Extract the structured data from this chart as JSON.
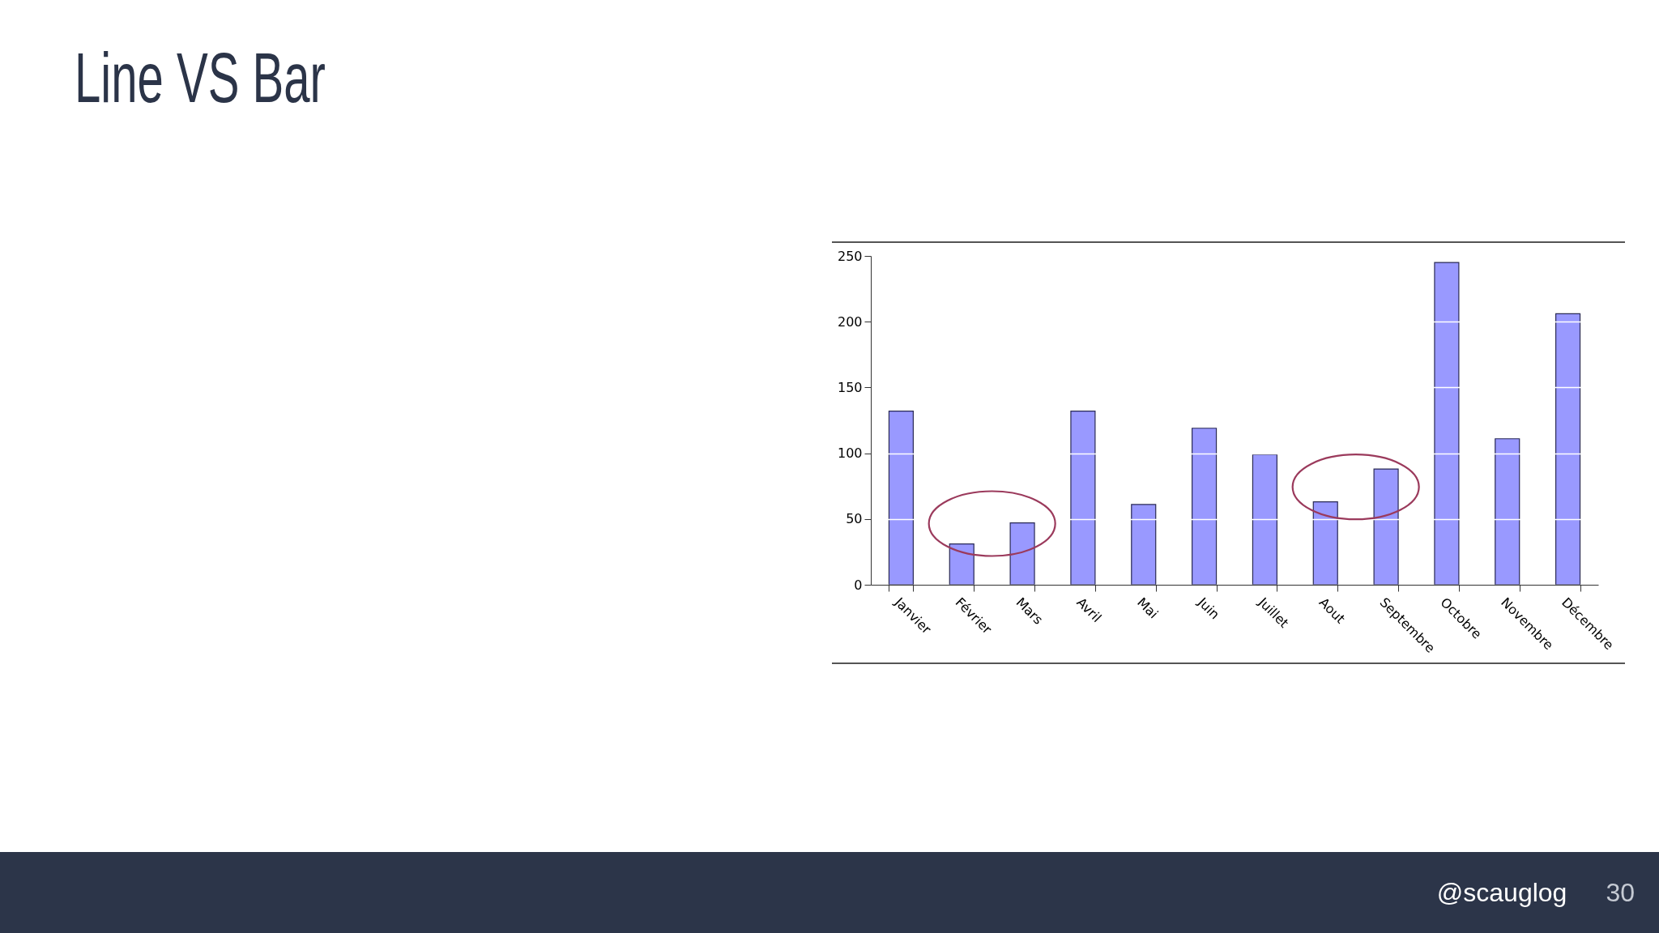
{
  "chart_data": {
    "type": "bar",
    "title": "Line VS Bar",
    "categories": [
      "Janvier",
      "Février",
      "Mars",
      "Avril",
      "Mai",
      "Juin",
      "Juillet",
      "Aout",
      "Septembre",
      "Octobre",
      "Novembre",
      "Décembre"
    ],
    "values": [
      132,
      31,
      47,
      132,
      61,
      119,
      99,
      63,
      88,
      245,
      111,
      206
    ],
    "color": "#9999ff",
    "ylim": [
      0,
      250
    ],
    "yticks": [
      0,
      50,
      100,
      150,
      200,
      250
    ],
    "grid": "y",
    "annotations": [
      "@scauglog",
      "30"
    ]
  }
}
